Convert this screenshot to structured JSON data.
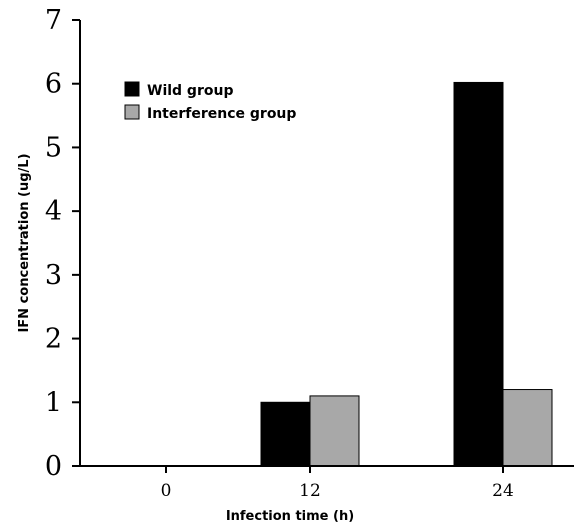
{
  "chart_data": {
    "type": "bar",
    "title": "",
    "xlabel": "Infection time (h)",
    "ylabel": "IFN concentration (ug/L)",
    "categories": [
      "0",
      "12",
      "24"
    ],
    "ylim": [
      0,
      7
    ],
    "yticks": [
      "0",
      "1",
      "2",
      "3",
      "4",
      "5",
      "6",
      "7"
    ],
    "grid": false,
    "legend_position": "top-left",
    "series": [
      {
        "name": "Wild group",
        "color": "#000000",
        "values": [
          0,
          1.0,
          6.02
        ]
      },
      {
        "name": "Interference group",
        "color": "#a8a8a8",
        "values": [
          0,
          1.1,
          1.2
        ]
      }
    ]
  }
}
